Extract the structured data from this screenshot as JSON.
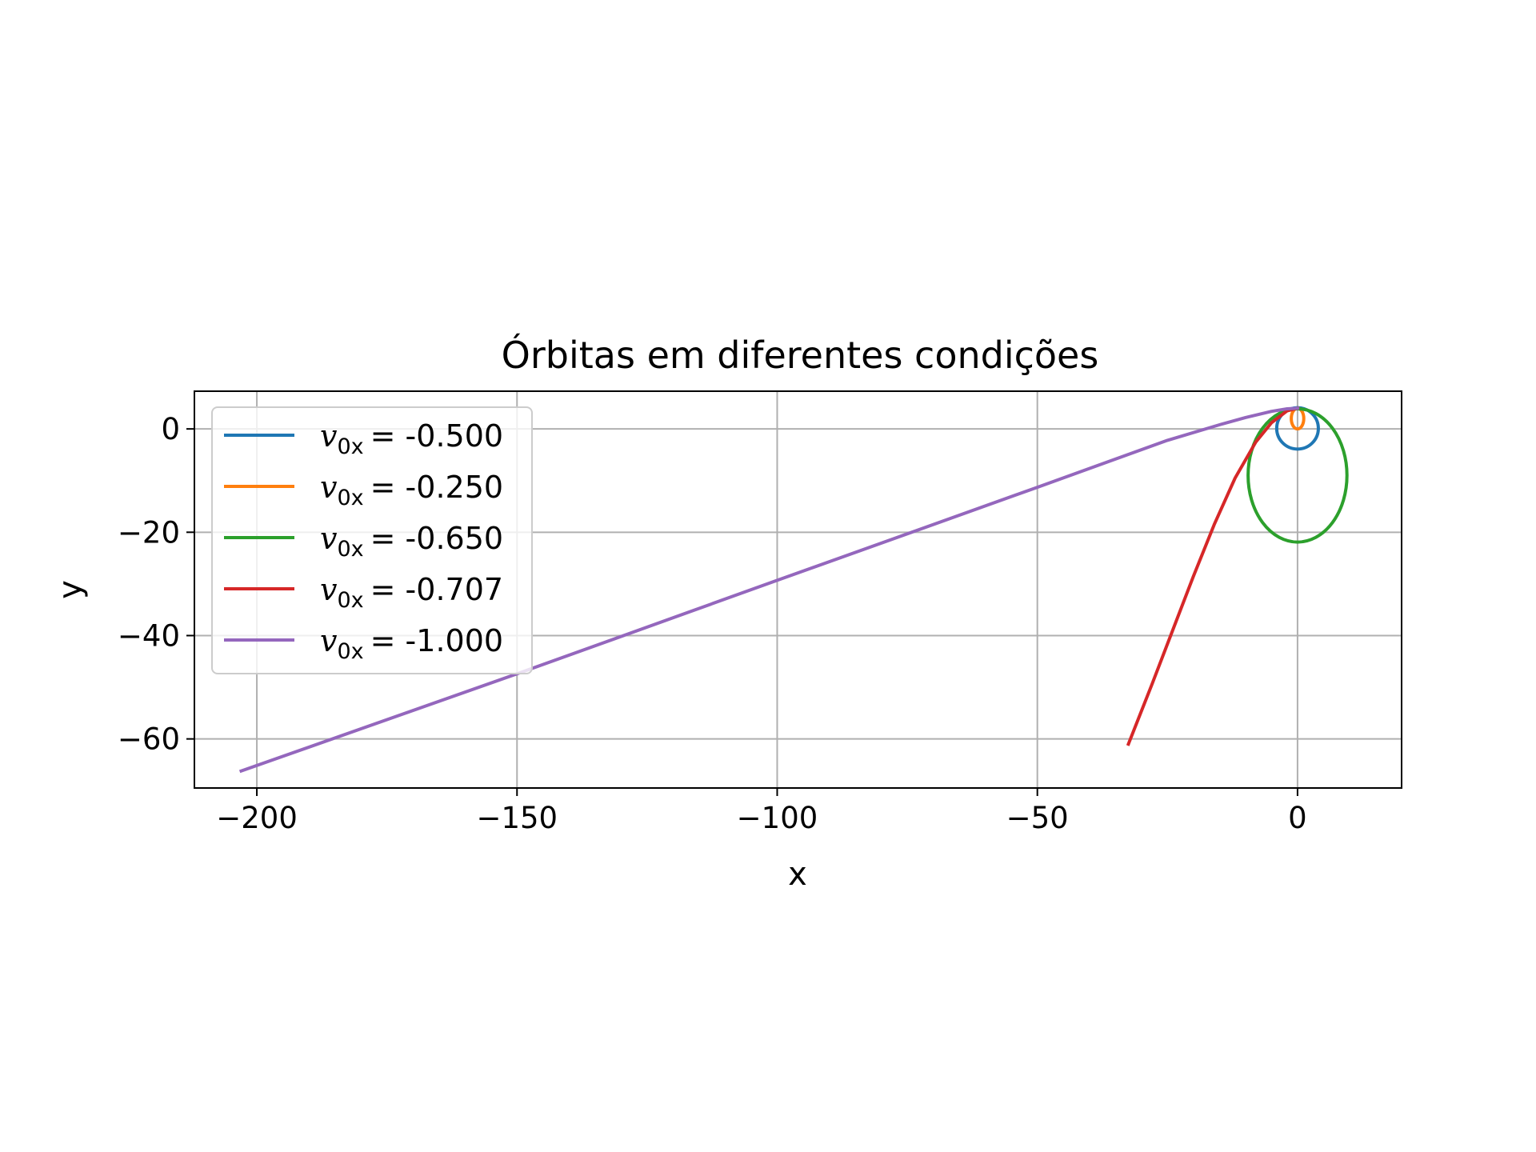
{
  "chart_data": {
    "type": "line",
    "title": "Órbitas em diferentes condições",
    "xlabel": "x",
    "ylabel": "y",
    "xlim": [
      -212,
      20
    ],
    "ylim": [
      -69.5,
      7.3
    ],
    "xticks": [
      -200,
      -150,
      -100,
      -50,
      0
    ],
    "yticks": [
      0,
      -20,
      -40,
      -60
    ],
    "xtick_labels": [
      "−200",
      "−150",
      "−100",
      "−50",
      "0"
    ],
    "ytick_labels": [
      "0",
      "−20",
      "−40",
      "−60"
    ],
    "grid": true,
    "legend_position": "upper-left",
    "series": [
      {
        "name": "v0x = -0.500",
        "label_symbol": "v",
        "label_sub": "0x",
        "label_value": "= -0.500",
        "color": "#1f77b4",
        "shape": "ellipse",
        "center": [
          0,
          0.1
        ],
        "radii": [
          4,
          4
        ]
      },
      {
        "name": "v0x = -0.250",
        "label_symbol": "v",
        "label_sub": "0x",
        "label_value": "= -0.250",
        "color": "#ff7f0e",
        "shape": "ellipse",
        "center": [
          0,
          2
        ],
        "radii": [
          1.2,
          2
        ]
      },
      {
        "name": "v0x = -0.650",
        "label_symbol": "v",
        "label_sub": "0x",
        "label_value": "= -0.650",
        "color": "#2ca02c",
        "shape": "ellipse",
        "center": [
          0,
          -9
        ],
        "radii": [
          9.5,
          12.9
        ]
      },
      {
        "name": "v0x = -0.707",
        "label_symbol": "v",
        "label_sub": "0x",
        "label_value": "= -0.707",
        "color": "#d62728",
        "shape": "line",
        "x": [
          0,
          -2,
          -5,
          -8,
          -12,
          -16,
          -20,
          -24,
          -28,
          -32.5
        ],
        "y": [
          4,
          3.5,
          1.2,
          -2.5,
          -9.5,
          -18.5,
          -28.5,
          -39,
          -49.5,
          -61
        ]
      },
      {
        "name": "v0x = -1.000",
        "label_symbol": "v",
        "label_sub": "0x",
        "label_value": "= -1.000",
        "color": "#9467bd",
        "shape": "line",
        "x": [
          0,
          -2,
          -5,
          -10,
          -15,
          -25,
          -50,
          -100,
          -150,
          -203
        ],
        "y": [
          4,
          3.9,
          3.4,
          2.2,
          0.8,
          -2.2,
          -11.3,
          -29.3,
          -47.4,
          -66.2
        ]
      }
    ]
  }
}
